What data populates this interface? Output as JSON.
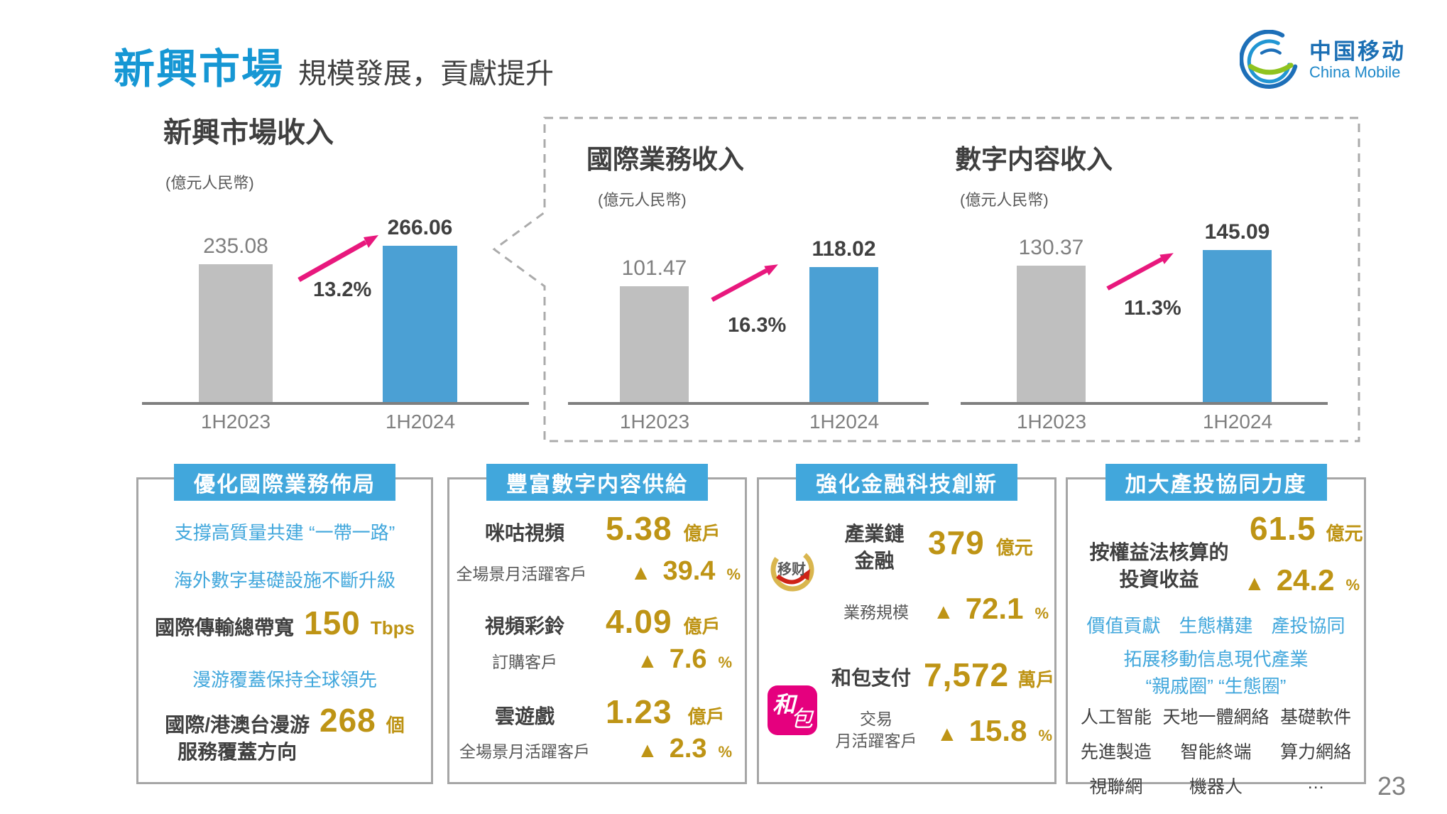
{
  "slide": {
    "page_number": "23",
    "header": {
      "title_highlight": "新興市場",
      "title_rest": "規模發展，貢獻提升",
      "logo_cn": "中国移动",
      "logo_en": "China Mobile"
    }
  },
  "colors": {
    "brand_blue": "#1697D4",
    "panel_header_blue": "#41A7DC",
    "bar_blue": "#4BA0D4",
    "bar_gray": "#BFBFBF",
    "arrow_pink": "#E8187D",
    "gold": "#BE9415",
    "text_dark": "#404040"
  },
  "chart_data": [
    {
      "type": "bar",
      "title": "新興市場收入",
      "unit": "(億元人民幣)",
      "categories": [
        "1H2023",
        "1H2024"
      ],
      "values": [
        235.08,
        266.06
      ],
      "value_labels": [
        "235.08",
        "266.06"
      ],
      "growth": "13.2%",
      "ylim": [
        0,
        280
      ],
      "series_colors": [
        "#BFBFBF",
        "#4BA0D4"
      ]
    },
    {
      "type": "bar",
      "title": "國際業務收入",
      "unit": "(億元人民幣)",
      "categories": [
        "1H2023",
        "1H2024"
      ],
      "values": [
        101.47,
        118.02
      ],
      "value_labels": [
        "101.47",
        "118.02"
      ],
      "growth": "16.3%",
      "ylim": [
        0,
        130
      ],
      "series_colors": [
        "#BFBFBF",
        "#4BA0D4"
      ]
    },
    {
      "type": "bar",
      "title": "數字内容收入",
      "unit": "(億元人民幣)",
      "categories": [
        "1H2023",
        "1H2024"
      ],
      "values": [
        130.37,
        145.09
      ],
      "value_labels": [
        "130.37",
        "145.09"
      ],
      "growth": "11.3%",
      "ylim": [
        0,
        160
      ],
      "series_colors": [
        "#BFBFBF",
        "#4BA0D4"
      ]
    }
  ],
  "panels": [
    {
      "header": "優化國際業務佈局",
      "blue_lines": [
        "支撐高質量共建 “一帶一路”",
        "海外數字基礎設施不斷升級",
        "漫游覆蓋保持全球領先"
      ],
      "stat1": {
        "label": "國際傳輸總帶寬",
        "value": "150",
        "unit": "Tbps"
      },
      "stat2": {
        "label_line1": "國際/港澳台漫游",
        "label_line2": "服務覆蓋方向",
        "value": "268",
        "unit": "個"
      }
    },
    {
      "header": "豐富數字内容供給",
      "items": [
        {
          "label": "咪咕視頻",
          "value": "5.38",
          "unit": "億戶",
          "sub_label": "全場景月活躍客戶",
          "growth": "39.4",
          "growth_unit": "%"
        },
        {
          "label": "視頻彩鈴",
          "value": "4.09",
          "unit": "億戶",
          "sub_label": "訂購客戶",
          "growth": "7.6",
          "growth_unit": "%"
        },
        {
          "label": "雲遊戲",
          "value": "1.23",
          "unit": "億戶",
          "sub_label": "全場景月活躍客戶",
          "growth": "2.3",
          "growth_unit": "%"
        }
      ]
    },
    {
      "header": "強化金融科技創新",
      "items": [
        {
          "icon": "micai-logo",
          "icon_text": "移财",
          "label_line1": "產業鏈",
          "label_line2": "金融",
          "value": "379",
          "unit": "億元",
          "sub_line1": "業務規模",
          "sub_line2": "",
          "growth": "72.1",
          "growth_unit": "%"
        },
        {
          "icon": "hebao-logo",
          "icon_char1": "和",
          "icon_char2": "包",
          "label_line1": "和包支付",
          "label_line2": "",
          "value": "7,572",
          "unit": "萬戶",
          "sub_line1": "交易",
          "sub_line2": "月活躍客戶",
          "growth": "15.8",
          "growth_unit": "%"
        }
      ]
    },
    {
      "header": "加大產投協同力度",
      "stat": {
        "label_line1": "按權益法核算的",
        "label_line2": "投資收益",
        "value": "61.5",
        "unit": "億元",
        "growth": "24.2",
        "growth_unit": "%"
      },
      "blue_keywords": [
        "價值貢獻",
        "生態構建",
        "產投協同"
      ],
      "blue_line1": "拓展移動信息現代產業",
      "blue_line2": "“親戚圈”  “生態圈”",
      "industry_grid": [
        [
          "人工智能",
          "天地一體網絡",
          "基礎軟件"
        ],
        [
          "先進製造",
          "智能終端",
          "算力網絡"
        ],
        [
          "視聯網",
          "機器人",
          "…"
        ]
      ]
    }
  ]
}
